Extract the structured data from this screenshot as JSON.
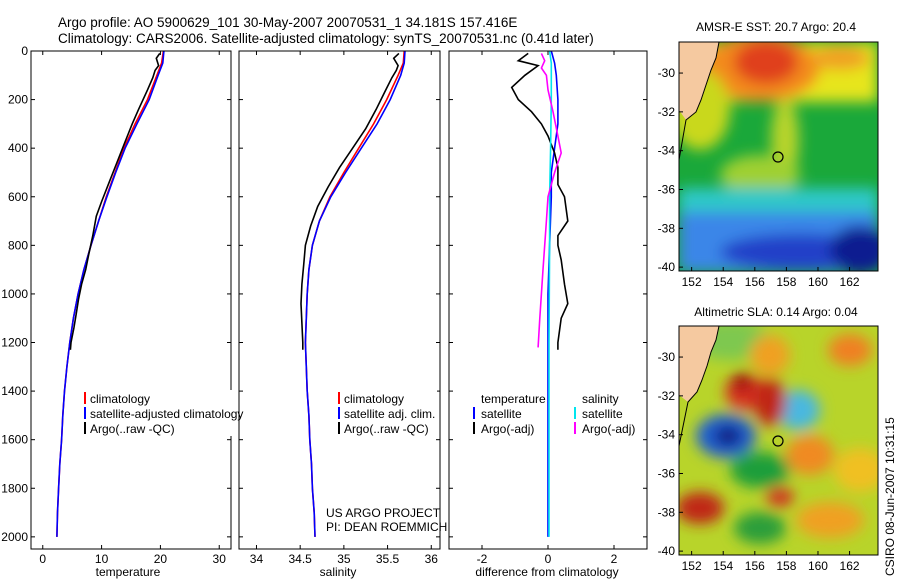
{
  "header": {
    "line1": "Argo profile: AO 5900629_101 30-May-2007 20070531_1 34.181S 157.416E",
    "line2": "Climatology: CARS2006. Satellite-adjusted climatology: synTS_20070531.nc (0.41d later)"
  },
  "credits": {
    "project": "US ARGO PROJECT",
    "pi": "PI: DEAN ROEMMICH",
    "stamp": "CSIRO 08-Jun-2007 10:31:15"
  },
  "chart_data": [
    {
      "id": "temperature",
      "type": "line",
      "xlabel": "temperature",
      "ylabel": "",
      "xlim": [
        -2,
        32
      ],
      "ylim": [
        2050,
        0
      ],
      "xticks": [
        0,
        10,
        20,
        30
      ],
      "yticks": [
        0,
        200,
        400,
        600,
        800,
        1000,
        1200,
        1400,
        1600,
        1800,
        2000
      ],
      "legend": [
        "climatology",
        "satellite-adjusted climatology",
        "Argo(..raw -QC)"
      ],
      "series": [
        {
          "name": "climatology",
          "color": "#ff0000",
          "points": [
            [
              20.5,
              0
            ],
            [
              20.2,
              50
            ],
            [
              19.4,
              100
            ],
            [
              17.8,
              200
            ],
            [
              15.7,
              300
            ],
            [
              13.8,
              400
            ],
            [
              12.3,
              500
            ],
            [
              10.8,
              600
            ],
            [
              9.5,
              700
            ],
            [
              8.2,
              800
            ],
            [
              7.0,
              900
            ],
            [
              6.0,
              1000
            ],
            [
              5.2,
              1100
            ],
            [
              4.6,
              1200
            ],
            [
              4.1,
              1300
            ],
            [
              3.7,
              1400
            ],
            [
              3.4,
              1500
            ],
            [
              3.2,
              1600
            ],
            [
              2.9,
              1700
            ],
            [
              2.7,
              1800
            ],
            [
              2.5,
              1900
            ],
            [
              2.4,
              2000
            ]
          ]
        },
        {
          "name": "satellite-adjusted climatology",
          "color": "#0000ff",
          "points": [
            [
              20.6,
              0
            ],
            [
              20.4,
              50
            ],
            [
              19.6,
              100
            ],
            [
              18.1,
              200
            ],
            [
              16.0,
              300
            ],
            [
              14.0,
              400
            ],
            [
              12.4,
              500
            ],
            [
              10.9,
              600
            ],
            [
              9.5,
              700
            ],
            [
              8.2,
              800
            ],
            [
              7.0,
              900
            ],
            [
              6.0,
              1000
            ],
            [
              5.2,
              1100
            ],
            [
              4.6,
              1200
            ],
            [
              4.1,
              1300
            ],
            [
              3.7,
              1400
            ],
            [
              3.4,
              1500
            ],
            [
              3.2,
              1600
            ],
            [
              2.9,
              1700
            ],
            [
              2.7,
              1800
            ],
            [
              2.5,
              1900
            ],
            [
              2.4,
              2000
            ]
          ]
        },
        {
          "name": "Argo(..raw -QC)",
          "color": "#000000",
          "points": [
            [
              19.9,
              10
            ],
            [
              19.3,
              30
            ],
            [
              19.7,
              60
            ],
            [
              19.1,
              80
            ],
            [
              18.7,
              110
            ],
            [
              17.8,
              160
            ],
            [
              16.3,
              240
            ],
            [
              15.2,
              300
            ],
            [
              13.9,
              380
            ],
            [
              12.6,
              460
            ],
            [
              11.3,
              540
            ],
            [
              10.0,
              620
            ],
            [
              9.1,
              680
            ],
            [
              8.5,
              760
            ],
            [
              7.8,
              840
            ],
            [
              7.3,
              900
            ],
            [
              6.6,
              960
            ],
            [
              6.1,
              1020
            ],
            [
              5.7,
              1080
            ],
            [
              5.3,
              1140
            ],
            [
              4.8,
              1200
            ],
            [
              4.7,
              1230
            ]
          ]
        }
      ]
    },
    {
      "id": "salinity",
      "type": "line",
      "xlabel": "salinity",
      "ylabel": "",
      "xlim": [
        33.8,
        36.1
      ],
      "ylim": [
        2050,
        0
      ],
      "xticks": [
        34,
        34.5,
        35,
        35.5,
        36
      ],
      "yticks": [
        0,
        200,
        400,
        600,
        800,
        1000,
        1200,
        1400,
        1600,
        1800,
        2000
      ],
      "legend": [
        "climatology",
        "satellite adj. clim.",
        "Argo(..raw -QC)"
      ],
      "series": [
        {
          "name": "climatology",
          "color": "#ff0000",
          "points": [
            [
              35.69,
              0
            ],
            [
              35.68,
              50
            ],
            [
              35.62,
              100
            ],
            [
              35.49,
              200
            ],
            [
              35.34,
              300
            ],
            [
              35.17,
              400
            ],
            [
              35.0,
              500
            ],
            [
              34.84,
              600
            ],
            [
              34.72,
              700
            ],
            [
              34.64,
              800
            ],
            [
              34.6,
              900
            ],
            [
              34.58,
              1000
            ],
            [
              34.57,
              1100
            ],
            [
              34.56,
              1200
            ],
            [
              34.57,
              1300
            ],
            [
              34.58,
              1400
            ],
            [
              34.6,
              1500
            ],
            [
              34.61,
              1600
            ],
            [
              34.63,
              1700
            ],
            [
              34.64,
              1800
            ],
            [
              34.66,
              1900
            ],
            [
              34.67,
              2000
            ]
          ]
        },
        {
          "name": "satellite adj. clim.",
          "color": "#0000ff",
          "points": [
            [
              35.7,
              0
            ],
            [
              35.69,
              50
            ],
            [
              35.65,
              100
            ],
            [
              35.53,
              200
            ],
            [
              35.38,
              300
            ],
            [
              35.2,
              400
            ],
            [
              35.02,
              500
            ],
            [
              34.85,
              600
            ],
            [
              34.72,
              700
            ],
            [
              34.64,
              800
            ],
            [
              34.6,
              900
            ],
            [
              34.58,
              1000
            ],
            [
              34.57,
              1100
            ],
            [
              34.56,
              1200
            ],
            [
              34.57,
              1300
            ],
            [
              34.58,
              1400
            ],
            [
              34.6,
              1500
            ],
            [
              34.61,
              1600
            ],
            [
              34.63,
              1700
            ],
            [
              34.64,
              1800
            ],
            [
              34.66,
              1900
            ],
            [
              34.67,
              2000
            ]
          ]
        },
        {
          "name": "Argo(..raw -QC)",
          "color": "#000000",
          "points": [
            [
              35.63,
              10
            ],
            [
              35.57,
              30
            ],
            [
              35.62,
              60
            ],
            [
              35.6,
              80
            ],
            [
              35.55,
              110
            ],
            [
              35.48,
              160
            ],
            [
              35.37,
              240
            ],
            [
              35.25,
              320
            ],
            [
              35.1,
              400
            ],
            [
              34.95,
              480
            ],
            [
              34.82,
              560
            ],
            [
              34.7,
              640
            ],
            [
              34.62,
              720
            ],
            [
              34.56,
              800
            ],
            [
              34.54,
              880
            ],
            [
              34.52,
              960
            ],
            [
              34.51,
              1040
            ],
            [
              34.52,
              1120
            ],
            [
              34.53,
              1200
            ],
            [
              34.53,
              1230
            ]
          ]
        }
      ]
    },
    {
      "id": "difference",
      "type": "line",
      "xlabel": "difference from climatology",
      "ylabel": "",
      "xlim": [
        -3,
        3
      ],
      "ylim": [
        2050,
        0
      ],
      "xticks": [
        -2,
        0,
        2
      ],
      "yticks": [
        0,
        200,
        400,
        600,
        800,
        1000,
        1200,
        1400,
        1600,
        1800,
        2000
      ],
      "legend": [
        {
          "group": "temperature",
          "items": [
            "satellite",
            "Argo(-adj)"
          ]
        },
        {
          "group": "salinity",
          "items": [
            "satellite",
            "Argo(-adj)"
          ]
        }
      ],
      "series": [
        {
          "name": "temperature satellite",
          "color": "#0000ff",
          "points": [
            [
              0.1,
              0
            ],
            [
              0.2,
              50
            ],
            [
              0.25,
              100
            ],
            [
              0.3,
              200
            ],
            [
              0.3,
              300
            ],
            [
              0.2,
              400
            ],
            [
              0.1,
              500
            ],
            [
              0.1,
              600
            ],
            [
              0.05,
              800
            ],
            [
              0.0,
              1000
            ],
            [
              0.0,
              1200
            ],
            [
              0.0,
              1400
            ],
            [
              0.0,
              1600
            ],
            [
              0.0,
              2000
            ]
          ]
        },
        {
          "name": "temperature Argo(-adj)",
          "color": "#000000",
          "points": [
            [
              -0.6,
              10
            ],
            [
              -0.9,
              40
            ],
            [
              -0.3,
              60
            ],
            [
              -0.7,
              100
            ],
            [
              -1.1,
              150
            ],
            [
              -0.9,
              200
            ],
            [
              -0.5,
              250
            ],
            [
              -0.2,
              300
            ],
            [
              0.0,
              350
            ],
            [
              0.2,
              420
            ],
            [
              0.3,
              480
            ],
            [
              0.3,
              550
            ],
            [
              0.5,
              600
            ],
            [
              0.6,
              700
            ],
            [
              0.3,
              760
            ],
            [
              0.3,
              800
            ],
            [
              0.4,
              860
            ],
            [
              0.5,
              960
            ],
            [
              0.6,
              1040
            ],
            [
              0.4,
              1100
            ],
            [
              0.3,
              1200
            ],
            [
              0.3,
              1230
            ]
          ]
        },
        {
          "name": "salinity satellite",
          "color": "#00e5ee",
          "points": [
            [
              0.05,
              0
            ],
            [
              0.1,
              50
            ],
            [
              0.1,
              100
            ],
            [
              0.1,
              200
            ],
            [
              0.08,
              400
            ],
            [
              0.05,
              600
            ],
            [
              0.05,
              800
            ],
            [
              0.04,
              1000
            ],
            [
              0.03,
              1200
            ],
            [
              0.03,
              1600
            ],
            [
              0.03,
              2000
            ]
          ]
        },
        {
          "name": "salinity Argo(-adj)",
          "color": "#ff00ff",
          "points": [
            [
              -0.2,
              10
            ],
            [
              -0.1,
              40
            ],
            [
              -0.2,
              70
            ],
            [
              -0.05,
              100
            ],
            [
              0.0,
              160
            ],
            [
              0.15,
              250
            ],
            [
              0.3,
              350
            ],
            [
              0.4,
              420
            ],
            [
              0.2,
              500
            ],
            [
              0.0,
              600
            ],
            [
              -0.05,
              700
            ],
            [
              -0.1,
              800
            ],
            [
              -0.15,
              900
            ],
            [
              -0.2,
              1000
            ],
            [
              -0.25,
              1100
            ],
            [
              -0.3,
              1220
            ]
          ]
        }
      ]
    },
    {
      "id": "sst_map",
      "type": "heatmap",
      "title": "AMSR-E SST: 20.7  Argo: 20.4",
      "xticks": [
        152,
        154,
        156,
        158,
        160,
        162
      ],
      "yticks": [
        -30,
        -32,
        -34,
        -36,
        -38,
        -40
      ],
      "xlim": [
        151.2,
        163.8
      ],
      "ylim": [
        -40.2,
        -28.4
      ],
      "marker": {
        "lon": 157.4,
        "lat": -34.2
      }
    },
    {
      "id": "sla_map",
      "type": "heatmap",
      "title": "Altimetric SLA: 0.14  Argo: 0.04",
      "xticks": [
        152,
        154,
        156,
        158,
        160,
        162
      ],
      "yticks": [
        -30,
        -32,
        -34,
        -36,
        -38,
        -40
      ],
      "xlim": [
        151.2,
        163.8
      ],
      "ylim": [
        -40.2,
        -28.4
      ],
      "marker": {
        "lon": 157.4,
        "lat": -34.2
      }
    }
  ]
}
